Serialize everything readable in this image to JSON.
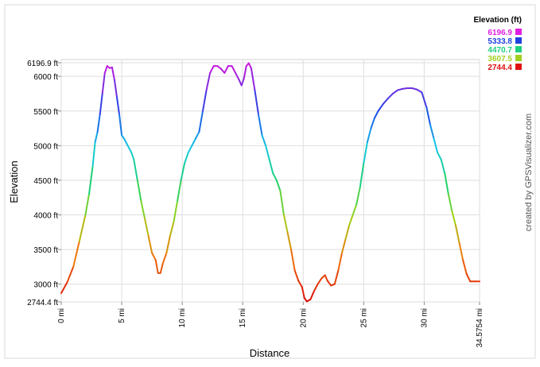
{
  "chart_data": {
    "type": "line",
    "xlabel": "Distance",
    "ylabel": "Elevation",
    "credit": "created by GPSVisualizer.com",
    "xlim": [
      0,
      34.5754
    ],
    "ylim": [
      2744.4,
      6196.9
    ],
    "x_ticks": [
      {
        "v": 0,
        "label": "0 mi"
      },
      {
        "v": 5,
        "label": "5 mi"
      },
      {
        "v": 10,
        "label": "10 mi"
      },
      {
        "v": 15,
        "label": "15 mi"
      },
      {
        "v": 20,
        "label": "20 mi"
      },
      {
        "v": 25,
        "label": "25 mi"
      },
      {
        "v": 30,
        "label": "30 mi"
      },
      {
        "v": 34.5754,
        "label": "34.5754 mi"
      }
    ],
    "y_ticks": [
      {
        "v": 2744.4,
        "label": "2744.4 ft"
      },
      {
        "v": 3000,
        "label": "3000 ft"
      },
      {
        "v": 3500,
        "label": "3500 ft"
      },
      {
        "v": 4000,
        "label": "4000 ft"
      },
      {
        "v": 4500,
        "label": "4500 ft"
      },
      {
        "v": 5000,
        "label": "5000 ft"
      },
      {
        "v": 5500,
        "label": "5500 ft"
      },
      {
        "v": 6000,
        "label": "6000 ft"
      },
      {
        "v": 6196.9,
        "label": "6196.9 ft"
      }
    ],
    "legend": {
      "title": "Elevation (ft)",
      "position": "top-right",
      "entries": [
        {
          "label": "6196.9",
          "color": "#e020e0"
        },
        {
          "label": "5333.8",
          "color": "#2040e0"
        },
        {
          "label": "4470.7",
          "color": "#20d080"
        },
        {
          "label": "3607.5",
          "color": "#a0d020"
        },
        {
          "label": "2744.4",
          "color": "#e01010"
        }
      ]
    },
    "series": [
      {
        "points": [
          [
            0,
            2870
          ],
          [
            0.5,
            3030
          ],
          [
            1,
            3250
          ],
          [
            1.5,
            3620
          ],
          [
            2,
            4000
          ],
          [
            2.3,
            4300
          ],
          [
            2.6,
            4700
          ],
          [
            2.8,
            5050
          ],
          [
            3.0,
            5200
          ],
          [
            3.2,
            5450
          ],
          [
            3.4,
            5750
          ],
          [
            3.6,
            6050
          ],
          [
            3.8,
            6150
          ],
          [
            4.0,
            6120
          ],
          [
            4.2,
            6130
          ],
          [
            4.4,
            5950
          ],
          [
            4.6,
            5700
          ],
          [
            4.8,
            5450
          ],
          [
            5.0,
            5150
          ],
          [
            5.2,
            5100
          ],
          [
            5.5,
            5000
          ],
          [
            5.8,
            4900
          ],
          [
            6.0,
            4800
          ],
          [
            6.3,
            4500
          ],
          [
            6.6,
            4200
          ],
          [
            6.9,
            3950
          ],
          [
            7.2,
            3700
          ],
          [
            7.5,
            3450
          ],
          [
            7.8,
            3350
          ],
          [
            8.0,
            3160
          ],
          [
            8.2,
            3160
          ],
          [
            8.4,
            3300
          ],
          [
            8.7,
            3450
          ],
          [
            9.0,
            3700
          ],
          [
            9.3,
            3900
          ],
          [
            9.6,
            4200
          ],
          [
            9.9,
            4500
          ],
          [
            10.2,
            4750
          ],
          [
            10.5,
            4900
          ],
          [
            10.8,
            5000
          ],
          [
            11.1,
            5100
          ],
          [
            11.4,
            5200
          ],
          [
            11.7,
            5500
          ],
          [
            12.0,
            5800
          ],
          [
            12.3,
            6050
          ],
          [
            12.6,
            6150
          ],
          [
            12.9,
            6150
          ],
          [
            13.2,
            6110
          ],
          [
            13.5,
            6050
          ],
          [
            13.8,
            6150
          ],
          [
            14.1,
            6150
          ],
          [
            14.4,
            6050
          ],
          [
            14.7,
            5950
          ],
          [
            14.9,
            5870
          ],
          [
            15.1,
            5970
          ],
          [
            15.3,
            6150
          ],
          [
            15.5,
            6190
          ],
          [
            15.7,
            6120
          ],
          [
            16.0,
            5800
          ],
          [
            16.3,
            5450
          ],
          [
            16.6,
            5150
          ],
          [
            16.9,
            5000
          ],
          [
            17.2,
            4800
          ],
          [
            17.5,
            4600
          ],
          [
            17.8,
            4500
          ],
          [
            18.1,
            4350
          ],
          [
            18.4,
            4000
          ],
          [
            18.7,
            3750
          ],
          [
            19.0,
            3500
          ],
          [
            19.3,
            3200
          ],
          [
            19.6,
            3050
          ],
          [
            19.9,
            2960
          ],
          [
            20.1,
            2800
          ],
          [
            20.3,
            2750
          ],
          [
            20.6,
            2780
          ],
          [
            20.9,
            2900
          ],
          [
            21.2,
            3000
          ],
          [
            21.5,
            3080
          ],
          [
            21.8,
            3130
          ],
          [
            22.0,
            3050
          ],
          [
            22.3,
            2980
          ],
          [
            22.6,
            3000
          ],
          [
            22.9,
            3200
          ],
          [
            23.2,
            3450
          ],
          [
            23.5,
            3650
          ],
          [
            23.8,
            3850
          ],
          [
            24.1,
            4000
          ],
          [
            24.4,
            4150
          ],
          [
            24.7,
            4400
          ],
          [
            25.0,
            4750
          ],
          [
            25.3,
            5050
          ],
          [
            25.6,
            5250
          ],
          [
            25.9,
            5400
          ],
          [
            26.2,
            5500
          ],
          [
            26.6,
            5600
          ],
          [
            27.0,
            5680
          ],
          [
            27.4,
            5750
          ],
          [
            27.8,
            5800
          ],
          [
            28.2,
            5820
          ],
          [
            28.6,
            5830
          ],
          [
            29.0,
            5830
          ],
          [
            29.4,
            5810
          ],
          [
            29.8,
            5770
          ],
          [
            30.2,
            5550
          ],
          [
            30.5,
            5300
          ],
          [
            30.8,
            5100
          ],
          [
            31.1,
            4900
          ],
          [
            31.4,
            4800
          ],
          [
            31.7,
            4600
          ],
          [
            32.0,
            4300
          ],
          [
            32.3,
            4050
          ],
          [
            32.6,
            3850
          ],
          [
            32.9,
            3600
          ],
          [
            33.2,
            3350
          ],
          [
            33.5,
            3150
          ],
          [
            33.8,
            3040
          ],
          [
            34.2,
            3040
          ],
          [
            34.5754,
            3040
          ]
        ]
      }
    ]
  }
}
